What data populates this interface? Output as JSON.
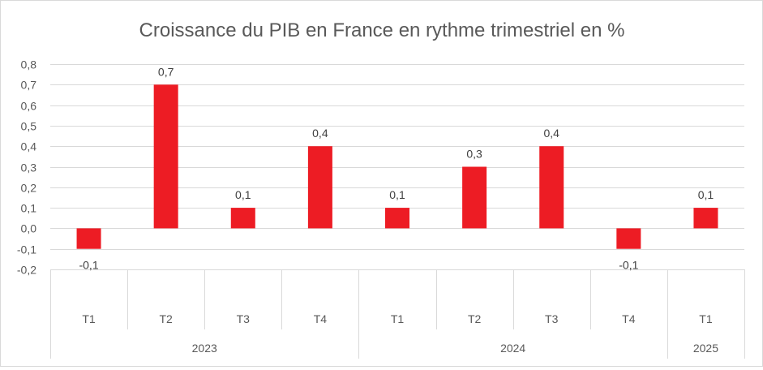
{
  "chart_data": {
    "type": "bar",
    "title": "Croissance du PIB en France en rythme trimestriel en %",
    "xlabel": "",
    "ylabel": "",
    "ylim": [
      -0.2,
      0.8
    ],
    "yticks": [
      -0.2,
      -0.1,
      0.0,
      0.1,
      0.2,
      0.3,
      0.4,
      0.5,
      0.6,
      0.7,
      0.8
    ],
    "ytick_labels": [
      "-0,2",
      "-0,1",
      "0,0",
      "0,1",
      "0,2",
      "0,3",
      "0,4",
      "0,5",
      "0,6",
      "0,7",
      "0,8"
    ],
    "grid": true,
    "legend": "none",
    "bar_color": "#ed1c24",
    "categories": [
      "T1",
      "T2",
      "T3",
      "T4",
      "T1",
      "T2",
      "T3",
      "T4",
      "T1"
    ],
    "groups": [
      {
        "label": "2023",
        "count": 4
      },
      {
        "label": "2024",
        "count": 4
      },
      {
        "label": "2025",
        "count": 1
      }
    ],
    "values": [
      -0.1,
      0.7,
      0.1,
      0.4,
      0.1,
      0.3,
      0.4,
      -0.1,
      0.1
    ],
    "value_labels": [
      "-0,1",
      "0,7",
      "0,1",
      "0,4",
      "0,1",
      "0,3",
      "0,4",
      "-0,1",
      "0,1"
    ]
  }
}
